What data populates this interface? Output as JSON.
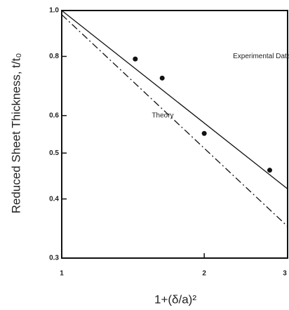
{
  "chart_data": {
    "type": "line",
    "x_label": "1+(δ/a)²",
    "y_label": "Reduced Sheet Thickness, t/t₀",
    "xscale": "log",
    "yscale": "log",
    "xlim": [
      1,
      3
    ],
    "ylim": [
      0.3,
      1.0
    ],
    "xticks": [
      1,
      2,
      3
    ],
    "yticks": [
      0.3,
      0.4,
      0.5,
      0.6,
      0.8,
      {
        "value": 1.0,
        "label": "1.0"
      }
    ],
    "series": [
      {
        "color": "#111",
        "style": "solid",
        "x": [
          1,
          3
        ],
        "values": [
          1.0,
          0.42
        ]
      },
      {
        "color": "#111",
        "style": "dashed",
        "x": [
          1,
          3
        ],
        "values": [
          0.98,
          0.35
        ]
      },
      {
        "color": "#111",
        "style": "points",
        "x": [
          1.43,
          1.63,
          2.0,
          2.75
        ],
        "values": [
          0.79,
          0.72,
          0.55,
          0.46
        ]
      }
    ],
    "annotations": [
      {
        "text": "Experimental Data",
        "x": 2.3,
        "y": 0.8
      },
      {
        "text": "Theory",
        "x": 1.55,
        "y": 0.6
      }
    ]
  }
}
